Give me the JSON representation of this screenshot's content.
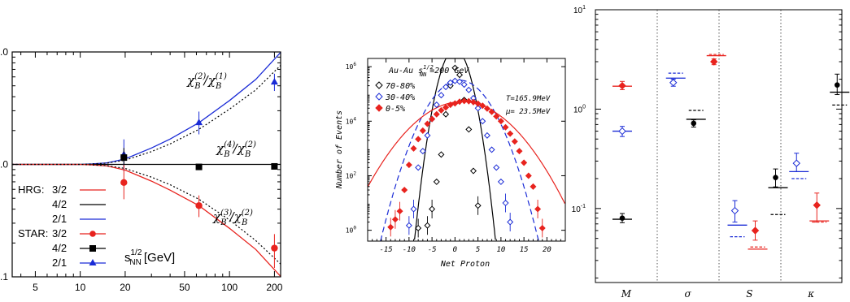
{
  "chart_data": [
    {
      "type": "line",
      "panel": "left",
      "x_scale": "log",
      "y_scale": "log",
      "xlim": [
        3.5,
        220
      ],
      "ylim": [
        0.1,
        10
      ],
      "x_ticks": [
        "5",
        "10",
        "20",
        "50",
        "100",
        "200"
      ],
      "y_ticks": [
        "0.1",
        "1.0",
        "10.0"
      ],
      "xlabel": {
        "base": "s",
        "sub": "NN",
        "sup": "1/2",
        "unit": "[GeV]"
      },
      "curve_labels": [
        {
          "sym": "χ",
          "sup1": "(2)",
          "sub1": "B",
          "slash": "/",
          "sym2": "χ",
          "sup2": "(1)",
          "sub2": "B"
        },
        {
          "sym": "χ",
          "sup1": "(4)",
          "sub1": "B",
          "slash": "/",
          "sym2": "χ",
          "sup2": "(2)",
          "sub2": "B"
        },
        {
          "sym": "χ",
          "sup1": "(3)",
          "sub1": "B",
          "slash": "/",
          "sym2": "χ",
          "sup2": "(2)",
          "sub2": "B"
        }
      ],
      "legend": {
        "hrg_title": "HRG:",
        "star_title": "STAR:",
        "entries": [
          "3/2",
          "4/2",
          "2/1"
        ],
        "colors": [
          "#e8231e",
          "#000000",
          "#1a2bd6"
        ]
      },
      "series": [
        {
          "name": "HRG 2/1",
          "kind": "curve",
          "color": "#1a2bd6",
          "x": [
            3.5,
            5,
            7,
            10,
            12,
            15,
            20,
            30,
            40,
            62.4,
            100,
            150,
            220
          ],
          "y": [
            1.0,
            1.0,
            1.0,
            1.0,
            1.01,
            1.03,
            1.12,
            1.4,
            1.68,
            2.35,
            3.7,
            5.7,
            9.9
          ]
        },
        {
          "name": "HRG 2/1 dotted",
          "kind": "curve-dotted",
          "color": "#000000",
          "x": [
            3.5,
            5,
            7,
            10,
            12,
            15,
            20,
            30,
            40,
            62.4,
            100,
            150,
            220
          ],
          "y": [
            1.0,
            1.0,
            1.0,
            1.0,
            1.01,
            1.025,
            1.09,
            1.3,
            1.52,
            2.05,
            3.1,
            4.6,
            7.6
          ]
        },
        {
          "name": "HRG 4/2",
          "kind": "curve",
          "color": "#000000",
          "x": [
            3.5,
            220
          ],
          "y": [
            1.0,
            1.0
          ]
        },
        {
          "name": "HRG 3/2",
          "kind": "curve",
          "color": "#e8231e",
          "x": [
            3.5,
            5,
            7,
            10,
            12,
            15,
            20,
            30,
            40,
            62.4,
            100,
            150,
            220
          ],
          "y": [
            1.0,
            1.0,
            1.0,
            1.0,
            0.99,
            0.97,
            0.89,
            0.71,
            0.59,
            0.43,
            0.27,
            0.175,
            0.101
          ]
        },
        {
          "name": "HRG 3/2 dotted",
          "kind": "curve-dotted",
          "color": "#000000",
          "x": [
            3.5,
            5,
            7,
            10,
            12,
            15,
            20,
            30,
            40,
            62.4,
            100,
            150,
            220
          ],
          "y": [
            1.0,
            1.0,
            1.0,
            1.0,
            0.99,
            0.975,
            0.92,
            0.77,
            0.66,
            0.49,
            0.32,
            0.21,
            0.13
          ]
        },
        {
          "name": "STAR 2/1",
          "kind": "points",
          "marker": "triangle",
          "color": "#1a2bd6",
          "x": [
            19.6,
            62.4,
            200
          ],
          "y": [
            1.22,
            2.35,
            5.4
          ],
          "yerr_lo": [
            0.35,
            0.5,
            0.9
          ],
          "yerr_hi": [
            0.45,
            0.6,
            1.0
          ]
        },
        {
          "name": "STAR 4/2",
          "kind": "points",
          "marker": "square",
          "color": "#000000",
          "x": [
            19.6,
            62.4,
            200
          ],
          "y": [
            1.15,
            0.95,
            0.96
          ],
          "yerr_lo": [
            0.2,
            0.02,
            0.02
          ],
          "yerr_hi": [
            0.25,
            0.02,
            0.02
          ]
        },
        {
          "name": "STAR 3/2",
          "kind": "points",
          "marker": "circle",
          "color": "#e8231e",
          "x": [
            19.6,
            62.4,
            200
          ],
          "y": [
            0.69,
            0.43,
            0.18
          ],
          "yerr_lo": [
            0.2,
            0.09,
            0.06
          ],
          "yerr_hi": [
            0.3,
            0.1,
            0.06
          ]
        }
      ]
    },
    {
      "type": "scatter",
      "panel": "middle",
      "y_scale": "log",
      "xlim": [
        -19,
        24
      ],
      "ylim": [
        0.4,
        2000000
      ],
      "x_ticks": [
        -15,
        -10,
        -5,
        0,
        5,
        10,
        15,
        20
      ],
      "y_ticks": [
        {
          "base": "10",
          "exp": "0"
        },
        {
          "base": "10",
          "exp": "2"
        },
        {
          "base": "10",
          "exp": "4"
        },
        {
          "base": "10",
          "exp": "6"
        }
      ],
      "xlabel": "Net Proton",
      "ylabel": "Number of Events",
      "title": {
        "pre": "Au-Au s",
        "sub": "NN",
        "sup": "1/2",
        "post": "=200 GeV"
      },
      "annotations": [
        "T=165.9MeV",
        "μ= 23.5MeV"
      ],
      "legend": [
        "70-80%",
        "30-40%",
        "0-5%"
      ],
      "series": [
        {
          "name": "70-80%",
          "color": "#000000",
          "marker": "diamond-open",
          "fit_style": "solid",
          "fit_mu": 0.0,
          "fit_sigma": 1.55,
          "fit_amp": 4500000,
          "x": [
            -8,
            -6,
            -5,
            -4,
            -3,
            -2,
            -1,
            0,
            1,
            2,
            3,
            4,
            5
          ],
          "y": [
            1.2,
            1.5,
            6,
            60,
            600,
            18000,
            200000,
            900000,
            500000,
            60000,
            5000,
            150,
            8
          ]
        },
        {
          "name": "30-40%",
          "color": "#1a2bd6",
          "marker": "diamond-open",
          "fit_style": "dashed",
          "fit_mu": 1.0,
          "fit_sigma": 3.3,
          "fit_amp": 320000,
          "x": [
            -10,
            -9,
            -8,
            -7,
            -6,
            -5,
            -4,
            -3,
            -2,
            -1,
            0,
            1,
            2,
            3,
            4,
            5,
            6,
            7,
            8,
            9,
            10,
            11,
            12
          ],
          "y": [
            1.5,
            6,
            200,
            800,
            3000,
            12000,
            40000,
            90000,
            180000,
            260000,
            300000,
            280000,
            220000,
            140000,
            70000,
            30000,
            10000,
            3000,
            900,
            200,
            60,
            10,
            2
          ]
        },
        {
          "name": "0-5%",
          "color": "#e8231e",
          "marker": "diamond-filled",
          "fit_style": "solid",
          "fit_mu": 1.5,
          "fit_sigma": 5.4,
          "fit_amp": 52000,
          "x": [
            -14,
            -13,
            -12,
            -11,
            -10,
            -9,
            -8,
            -7,
            -6,
            -5,
            -4,
            -3,
            -2,
            -1,
            0,
            1,
            2,
            3,
            4,
            5,
            6,
            7,
            8,
            9,
            10,
            11,
            12,
            13,
            14,
            15,
            16,
            17,
            18,
            19
          ],
          "y": [
            1.3,
            2.5,
            5,
            30,
            250,
            1000,
            2200,
            4500,
            8000,
            12000,
            18000,
            25000,
            32000,
            40000,
            45000,
            52000,
            55000,
            54000,
            50000,
            44000,
            37000,
            29000,
            22000,
            15000,
            10000,
            6000,
            3500,
            1800,
            800,
            300,
            100,
            40,
            6,
            1.2
          ]
        }
      ]
    },
    {
      "type": "scatter",
      "panel": "right",
      "y_scale": "log",
      "ylim": [
        0.018,
        10
      ],
      "y_ticks": [
        {
          "base": "10",
          "exp": "-1"
        },
        {
          "base": "10",
          "exp": "0"
        },
        {
          "base": "10",
          "exp": "1"
        }
      ],
      "categories": [
        "M",
        "σ",
        "S",
        "κ"
      ],
      "group_colors": [
        "#000000",
        "#1a2bd6",
        "#e8231e"
      ],
      "points": [
        {
          "cat": 0,
          "slot": "black",
          "marker": "circle-filled",
          "color": "#000000",
          "y": 0.08,
          "err_lo": 0.008,
          "err_hi": 0.009
        },
        {
          "cat": 0,
          "slot": "blue",
          "marker": "diamond-open",
          "color": "#1a2bd6",
          "y": 0.6,
          "err_lo": 0.07,
          "err_hi": 0.07
        },
        {
          "cat": 0,
          "slot": "red",
          "marker": "diamond-filled",
          "color": "#e8231e",
          "y": 1.72,
          "err_lo": 0.15,
          "err_hi": 0.18
        },
        {
          "cat": 1,
          "slot": "blue",
          "marker": "diamond-open",
          "color": "#1a2bd6",
          "y": 1.85,
          "err_lo": 0.15,
          "err_hi": 0.15
        },
        {
          "cat": 1,
          "slot": "black",
          "marker": "circle-filled",
          "color": "#000000",
          "y": 0.72,
          "err_lo": 0.06,
          "err_hi": 0.06
        },
        {
          "cat": 1,
          "slot": "red",
          "marker": "diamond-filled",
          "color": "#e8231e",
          "y": 3.0,
          "err_lo": 0.2,
          "err_hi": 0.2
        },
        {
          "cat": 2,
          "slot": "blue",
          "marker": "diamond-open",
          "color": "#1a2bd6",
          "y": 0.095,
          "err_lo": 0.022,
          "err_hi": 0.025
        },
        {
          "cat": 2,
          "slot": "red",
          "marker": "diamond-filled",
          "color": "#e8231e",
          "y": 0.06,
          "err_lo": 0.012,
          "err_hi": 0.015
        },
        {
          "cat": 2,
          "slot": "black",
          "marker": "circle-filled",
          "color": "#000000",
          "y": 0.205,
          "err_lo": 0.04,
          "err_hi": 0.045
        },
        {
          "cat": 3,
          "slot": "blue",
          "marker": "diamond-open",
          "color": "#1a2bd6",
          "y": 0.285,
          "err_lo": 0.05,
          "err_hi": 0.075
        },
        {
          "cat": 3,
          "slot": "red",
          "marker": "diamond-filled",
          "color": "#e8231e",
          "y": 0.108,
          "err_lo": 0.035,
          "err_hi": 0.035
        },
        {
          "cat": 3,
          "slot": "black",
          "marker": "circle-filled",
          "color": "#000000",
          "y": 1.75,
          "err_lo": 0.35,
          "err_hi": 0.5
        }
      ],
      "model_lines": [
        {
          "cat": 0,
          "slot": "black",
          "color": "#000000",
          "solid": 0.078,
          "dashed": null
        },
        {
          "cat": 0,
          "slot": "blue",
          "color": "#1a2bd6",
          "solid": 0.6,
          "dashed": null
        },
        {
          "cat": 0,
          "slot": "red",
          "color": "#e8231e",
          "solid": 1.7,
          "dashed": null
        },
        {
          "cat": 1,
          "slot": "blue",
          "color": "#1a2bd6",
          "solid": 2.05,
          "dashed": 2.3
        },
        {
          "cat": 1,
          "slot": "black",
          "color": "#000000",
          "solid": 0.79,
          "dashed": 0.97
        },
        {
          "cat": 1,
          "slot": "red",
          "color": "#e8231e",
          "solid": 3.45,
          "dashed": 3.55
        },
        {
          "cat": 2,
          "slot": "blue",
          "color": "#1a2bd6",
          "solid": 0.068,
          "dashed": 0.052
        },
        {
          "cat": 2,
          "slot": "red",
          "color": "#e8231e",
          "solid": 0.039,
          "dashed": 0.041
        },
        {
          "cat": 2,
          "slot": "black",
          "color": "#000000",
          "solid": 0.162,
          "dashed": 0.087
        },
        {
          "cat": 3,
          "slot": "blue",
          "color": "#1a2bd6",
          "solid": 0.235,
          "dashed": 0.2
        },
        {
          "cat": 3,
          "slot": "red",
          "color": "#e8231e",
          "solid": 0.075,
          "dashed": 0.073
        },
        {
          "cat": 3,
          "slot": "black",
          "color": "#000000",
          "solid": 1.48,
          "dashed": 1.1
        }
      ]
    }
  ]
}
